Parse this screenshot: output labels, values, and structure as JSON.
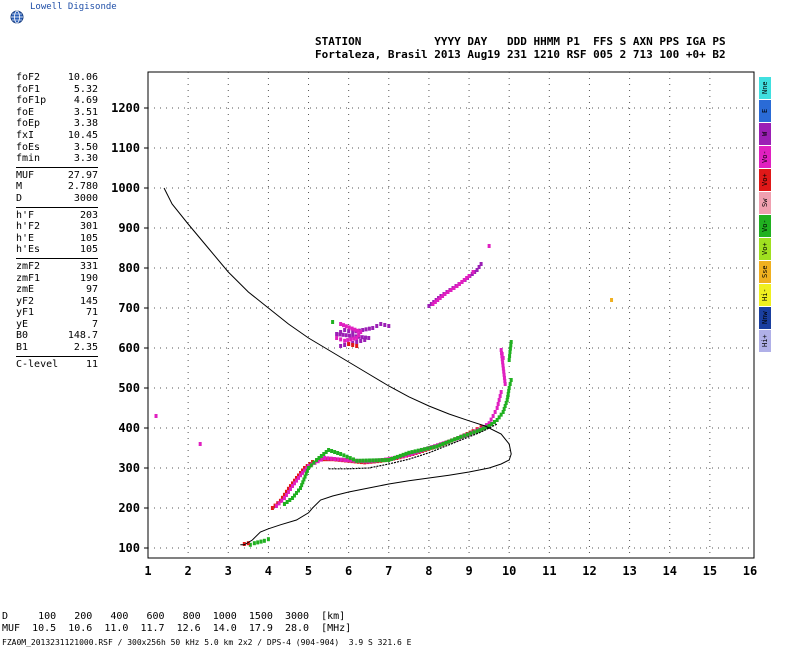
{
  "logo": {
    "text": "Lowell Digisonde",
    "icon": "globe-icon"
  },
  "header": {
    "line1": "STATION           YYYY DAY   DDD HHMM P1  FFS S AXN PPS IGA PS",
    "line2": "Fortaleza, Brasil 2013 Aug19 231 1210 RSF 005 2 713 100 +0+ B2"
  },
  "params": [
    {
      "name": "foF2",
      "value": "10.06"
    },
    {
      "name": "foF1",
      "value": "5.32"
    },
    {
      "name": "foF1p",
      "value": "4.69"
    },
    {
      "name": "foE",
      "value": "3.51"
    },
    {
      "name": "foEp",
      "value": "3.38"
    },
    {
      "name": "fxI",
      "value": "10.45"
    },
    {
      "name": "foEs",
      "value": "3.50"
    },
    {
      "name": "fmin",
      "value": "3.30"
    },
    {
      "sep": true
    },
    {
      "name": "MUF",
      "value": "27.97"
    },
    {
      "name": "M",
      "value": "2.780"
    },
    {
      "name": "D",
      "value": "3000"
    },
    {
      "sep": true
    },
    {
      "name": "h'F",
      "value": "203"
    },
    {
      "name": "h'F2",
      "value": "301"
    },
    {
      "name": "h'E",
      "value": "105"
    },
    {
      "name": "h'Es",
      "value": "105"
    },
    {
      "sep": true
    },
    {
      "name": "zmF2",
      "value": "331"
    },
    {
      "name": "zmF1",
      "value": "190"
    },
    {
      "name": "zmE",
      "value": "97"
    },
    {
      "name": "yF2",
      "value": "145"
    },
    {
      "name": "yF1",
      "value": "71"
    },
    {
      "name": "yE",
      "value": "7"
    },
    {
      "name": "B0",
      "value": "148.7"
    },
    {
      "name": "B1",
      "value": "2.35"
    },
    {
      "sep": true
    },
    {
      "name": "C-level",
      "value": "11"
    }
  ],
  "legend": [
    {
      "label": "Nne",
      "color": "#40e0e0"
    },
    {
      "label": "E",
      "color": "#2a6bd6"
    },
    {
      "label": "W",
      "color": "#9b1fb5"
    },
    {
      "label": "Vo-",
      "color": "#e020c0"
    },
    {
      "label": "Vo+",
      "color": "#e01818"
    },
    {
      "label": "Sw",
      "color": "#f0a0b0"
    },
    {
      "label": "Vo-",
      "color": "#20b020"
    },
    {
      "label": "Vo+",
      "color": "#a0e020"
    },
    {
      "label": "Sse",
      "color": "#f0b020"
    },
    {
      "label": "Hi-",
      "color": "#f0f020"
    },
    {
      "label": "Nnw",
      "color": "#1a3fa0"
    },
    {
      "label": "Hi+",
      "color": "#b0b0e8"
    }
  ],
  "bottom": {
    "d_line": "D     100   200   400   600   800  1000  1500  3000  [km]",
    "muf_line": "MUF  10.5  10.6  11.0  11.7  12.6  14.0  17.9  28.0  [MHz]"
  },
  "footer": "FZA0M_2013231121000.RSF / 300x256h 50 kHz 5.0 km 2x2 / DPS-4 (904-904)  3.9 S 321.6 E",
  "chart_data": {
    "type": "scatter",
    "title": "",
    "xlabel": "",
    "ylabel": "",
    "xlim": [
      1,
      16
    ],
    "ylim": [
      75,
      1290
    ],
    "x_ticks": [
      "1",
      "2",
      "3",
      "4",
      "5",
      "6",
      "7",
      "8",
      "9",
      "10",
      "11",
      "12",
      "13",
      "14",
      "15",
      "16"
    ],
    "y_ticks": [
      "100",
      "200",
      "300",
      "400",
      "500",
      "600",
      "700",
      "800",
      "900",
      "1000",
      "1100",
      "1200"
    ],
    "grid": true,
    "profile_line": {
      "name": "",
      "points": [
        [
          1.4,
          1000
        ],
        [
          1.6,
          960
        ],
        [
          2,
          910
        ],
        [
          2.5,
          850
        ],
        [
          3,
          790
        ],
        [
          3.5,
          740
        ],
        [
          4,
          700
        ],
        [
          4.5,
          660
        ],
        [
          5,
          625
        ],
        [
          5.5,
          595
        ],
        [
          6,
          565
        ],
        [
          6.5,
          535
        ],
        [
          7,
          505
        ],
        [
          7.5,
          478
        ],
        [
          8,
          455
        ],
        [
          8.5,
          435
        ],
        [
          9,
          418
        ],
        [
          9.4,
          405
        ],
        [
          9.8,
          385
        ],
        [
          10,
          360
        ],
        [
          10.05,
          335
        ],
        [
          10.0,
          320
        ],
        [
          9.8,
          310
        ],
        [
          9.5,
          300
        ],
        [
          9,
          290
        ],
        [
          8.5,
          282
        ],
        [
          8,
          275
        ],
        [
          7.5,
          268
        ],
        [
          7,
          260
        ],
        [
          6.5,
          250
        ],
        [
          6,
          240
        ],
        [
          5.6,
          230
        ],
        [
          5.3,
          220
        ],
        [
          5.1,
          200
        ],
        [
          5,
          188
        ],
        [
          4.7,
          170
        ],
        [
          4.3,
          158
        ],
        [
          4,
          148
        ],
        [
          3.8,
          140
        ],
        [
          3.6,
          120
        ],
        [
          3.4,
          108
        ],
        [
          3.3,
          108
        ]
      ]
    },
    "virtual_trace": {
      "name": "",
      "points": [
        [
          5.5,
          298
        ],
        [
          6,
          298
        ],
        [
          6.5,
          300
        ],
        [
          7,
          310
        ],
        [
          7.5,
          322
        ],
        [
          8,
          338
        ],
        [
          8.5,
          358
        ],
        [
          9,
          378
        ],
        [
          9.3,
          390
        ],
        [
          9.5,
          400
        ],
        [
          9.7,
          410
        ]
      ]
    },
    "echo_traces": [
      {
        "color": "#e01818",
        "points": [
          [
            4.1,
            200
          ],
          [
            4.3,
            218
          ],
          [
            4.5,
            248
          ],
          [
            4.7,
            275
          ],
          [
            4.9,
            300
          ],
          [
            5.1,
            315
          ],
          [
            5.3,
            322
          ],
          [
            5.6,
            322
          ],
          [
            6,
            318
          ],
          [
            6.4,
            314
          ],
          [
            6.8,
            318
          ],
          [
            7.2,
            325
          ],
          [
            7.6,
            335
          ],
          [
            8,
            348
          ],
          [
            8.4,
            362
          ],
          [
            8.8,
            378
          ],
          [
            9.1,
            392
          ],
          [
            9.3,
            402
          ]
        ]
      },
      {
        "color": "#e020c0",
        "points": [
          [
            4.2,
            205
          ],
          [
            4.4,
            225
          ],
          [
            4.6,
            255
          ],
          [
            4.8,
            282
          ],
          [
            5.0,
            305
          ],
          [
            5.4,
            325
          ],
          [
            5.9,
            320
          ],
          [
            6.5,
            316
          ],
          [
            7.0,
            322
          ],
          [
            7.5,
            333
          ],
          [
            8,
            350
          ],
          [
            8.5,
            366
          ],
          [
            9,
            385
          ],
          [
            9.3,
            398
          ],
          [
            9.5,
            412
          ],
          [
            9.6,
            430
          ],
          [
            9.7,
            450
          ],
          [
            9.75,
            470
          ],
          [
            9.8,
            490
          ]
        ]
      },
      {
        "color": "#20b020",
        "points": [
          [
            4.4,
            210
          ],
          [
            4.6,
            225
          ],
          [
            4.8,
            250
          ],
          [
            5.0,
            300
          ],
          [
            5.2,
            320
          ],
          [
            5.5,
            345
          ],
          [
            5.8,
            335
          ],
          [
            6.2,
            318
          ],
          [
            7,
            320
          ],
          [
            7.5,
            338
          ],
          [
            8.2,
            354
          ],
          [
            8.8,
            378
          ],
          [
            9.2,
            392
          ],
          [
            9.5,
            405
          ],
          [
            9.7,
            420
          ],
          [
            9.85,
            440
          ],
          [
            9.95,
            470
          ],
          [
            10.0,
            500
          ],
          [
            10.05,
            520
          ]
        ]
      },
      {
        "color": "#20b020",
        "points": [
          [
            10.0,
            570
          ],
          [
            10.02,
            590
          ],
          [
            10.05,
            615
          ]
        ]
      },
      {
        "color": "#9b1fb5",
        "points": [
          [
            5.8,
            605
          ],
          [
            6.0,
            610
          ],
          [
            6.2,
            615
          ],
          [
            6.4,
            620
          ],
          [
            6.5,
            625
          ],
          [
            5.7,
            635
          ],
          [
            5.9,
            645
          ],
          [
            6.1,
            640
          ],
          [
            6.6,
            650
          ],
          [
            6.8,
            660
          ],
          [
            7.0,
            655
          ]
        ]
      },
      {
        "color": "#e020c0",
        "points": [
          [
            5.7,
            625
          ],
          [
            5.9,
            618
          ],
          [
            6.2,
            625
          ],
          [
            6.3,
            640
          ],
          [
            5.8,
            660
          ]
        ]
      },
      {
        "color": "#e01818",
        "points": [
          [
            6.0,
            610
          ],
          [
            6.2,
            605
          ]
        ]
      },
      {
        "color": "#20b020",
        "points": [
          [
            5.6,
            665
          ]
        ]
      },
      {
        "color": "#9b1fb5",
        "points": [
          [
            8.0,
            705
          ],
          [
            8.3,
            730
          ],
          [
            8.6,
            750
          ],
          [
            8.9,
            770
          ],
          [
            9.2,
            795
          ],
          [
            9.3,
            810
          ]
        ]
      },
      {
        "color": "#e020c0",
        "points": [
          [
            8.1,
            710
          ],
          [
            8.4,
            735
          ],
          [
            8.7,
            755
          ],
          [
            9.0,
            780
          ],
          [
            9.1,
            790
          ]
        ]
      },
      {
        "color": "#e020c0",
        "points": [
          [
            9.5,
            855
          ],
          [
            9.85,
            575
          ],
          [
            9.8,
            595
          ],
          [
            9.9,
            510
          ]
        ]
      },
      {
        "color": "#20b020",
        "points": [
          [
            3.55,
            108
          ],
          [
            3.65,
            112
          ],
          [
            3.9,
            118
          ],
          [
            4.0,
            122
          ]
        ]
      },
      {
        "color": "#e01818",
        "points": [
          [
            3.4,
            110
          ],
          [
            3.5,
            112
          ]
        ]
      },
      {
        "color": "#e020c0",
        "points": [
          [
            1.2,
            430
          ],
          [
            2.3,
            360
          ]
        ]
      },
      {
        "color": "#f0b020",
        "points": [
          [
            12.55,
            720
          ]
        ]
      }
    ]
  }
}
